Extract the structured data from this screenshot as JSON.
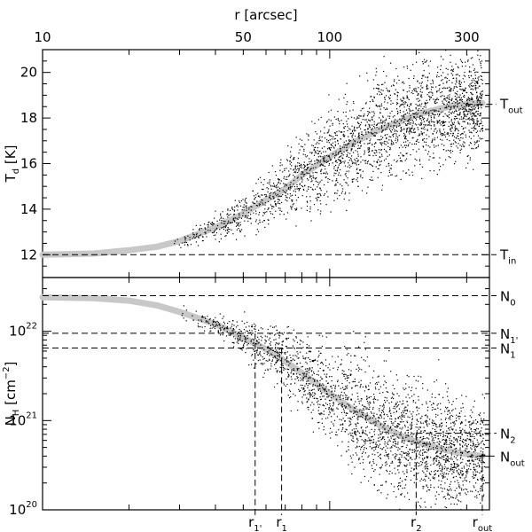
{
  "chart_data": [
    {
      "type": "scatter",
      "panel": "top",
      "title": "",
      "xlabel": "r [arcsec]",
      "ylabel": "T_d [K]",
      "xscale": "log",
      "xlim": [
        10,
        360
      ],
      "ylim": [
        11.0,
        21.0
      ],
      "x_ticks": [
        10,
        50,
        100,
        300
      ],
      "y_ticks": [
        12,
        14,
        16,
        18,
        20
      ],
      "grid": false,
      "curve": {
        "description": "model profile (thick gray)",
        "x": [
          10,
          15,
          20,
          25,
          30,
          40,
          50,
          60,
          70,
          80,
          100,
          120,
          150,
          180,
          200,
          250,
          300,
          340
        ],
        "y": [
          12.0,
          12.05,
          12.2,
          12.35,
          12.6,
          13.2,
          13.8,
          14.4,
          14.9,
          15.5,
          16.3,
          16.9,
          17.5,
          17.9,
          18.15,
          18.45,
          18.62,
          18.65
        ]
      },
      "reference_lines": [
        {
          "value": 18.6,
          "label": "T",
          "sub": "out"
        },
        {
          "value": 12.0,
          "label": "T",
          "sub": "in"
        }
      ]
    },
    {
      "type": "scatter",
      "panel": "bottom",
      "title": "",
      "xlabel": "",
      "ylabel": "N_H [cm^-2]",
      "xscale": "log",
      "yscale": "log",
      "xlim": [
        10,
        360
      ],
      "ylim": [
        1e+20,
        4e+22
      ],
      "y_ticks": [
        1e+20,
        1e+21,
        1e+22
      ],
      "grid": false,
      "curve": {
        "description": "model profile (thick gray)",
        "x": [
          10,
          15,
          20,
          25,
          30,
          40,
          50,
          60,
          70,
          80,
          100,
          120,
          150,
          180,
          200,
          250,
          300,
          340
        ],
        "y": [
          2.4e+22,
          2.35e+22,
          2.2e+22,
          1.95e+22,
          1.65e+22,
          1.2e+22,
          8.5e+21,
          6.3e+21,
          4.6e+21,
          3.4e+21,
          2e+21,
          1.35e+21,
          8.8e+20,
          6.6e+20,
          5.8e+20,
          4.7e+20,
          4.2e+20,
          4e+20
        ]
      },
      "reference_lines": [
        {
          "value": 2.5e+22,
          "label": "N",
          "sub": "0"
        },
        {
          "value": 9.5e+21,
          "label": "N",
          "sub": "1'"
        },
        {
          "value": 6.5e+21,
          "label": "N",
          "sub": "1"
        },
        {
          "value": 7.2e+20,
          "label": "N",
          "sub": "2"
        },
        {
          "value": 4e+20,
          "label": "N",
          "sub": "out"
        }
      ],
      "radius_markers": [
        {
          "x": 55,
          "label": "r",
          "sub": "1'"
        },
        {
          "x": 68,
          "label": "r",
          "sub": "1"
        },
        {
          "x": 200,
          "label": "r",
          "sub": "2"
        },
        {
          "x": 340,
          "label": "r",
          "sub": "out"
        }
      ]
    }
  ]
}
